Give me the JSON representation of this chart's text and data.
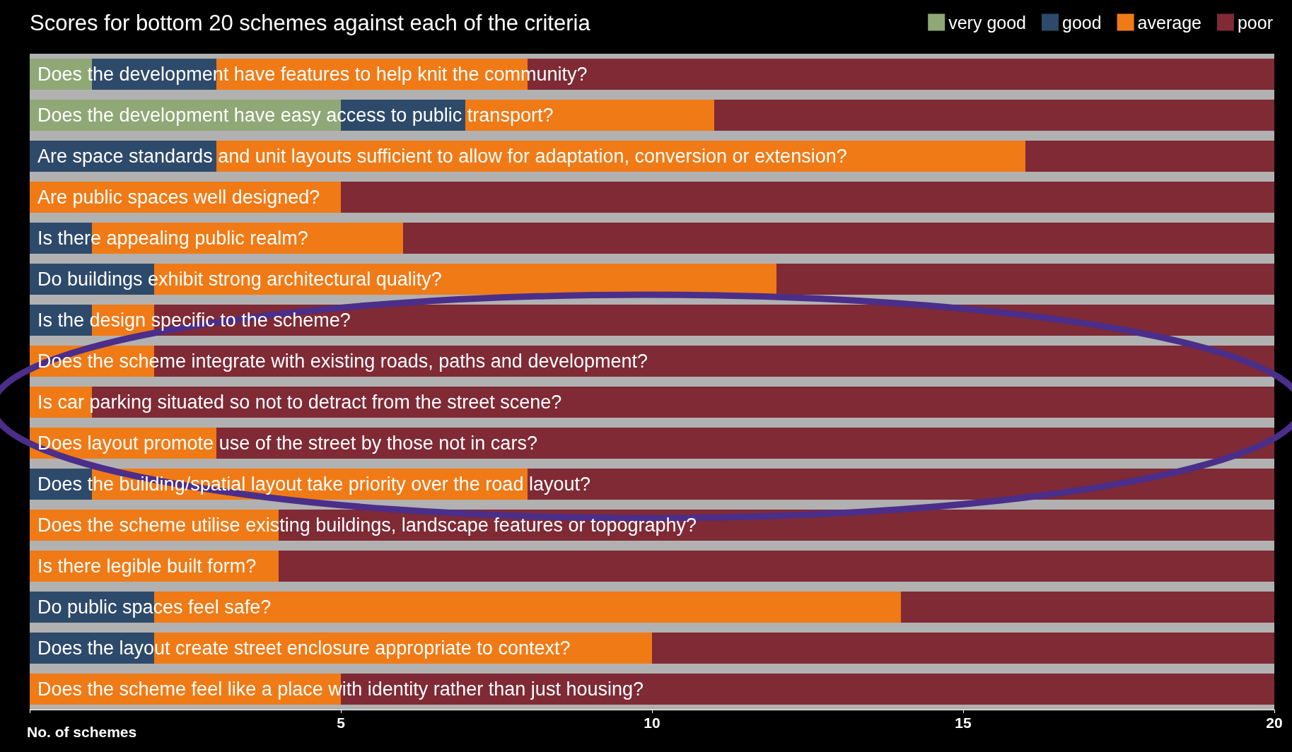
{
  "chart_data": {
    "type": "bar",
    "orientation": "horizontal",
    "stacked": true,
    "title": "Scores for bottom 20 schemes against each of the criteria",
    "xlabel": "No. of schemes",
    "categories": [
      "Does the development have features to help knit the community?",
      "Does the development have easy access to public transport?",
      "Are space standards and unit layouts sufficient to allow for adaptation, conversion or extension?",
      "Are public spaces well designed?",
      "Is there appealing public realm?",
      "Do buildings exhibit strong architectural quality?",
      "Is the design specific to the scheme?",
      "Does the scheme integrate with existing roads, paths and development?",
      "Is car parking situated so not to detract from the street scene?",
      "Does layout promote use of the street by those not in cars?",
      "Does the building/spatial layout take priority over the road layout?",
      "Does the scheme utilise existing buildings, landscape features or topography?",
      "Is there legible built form?",
      "Do public spaces feel safe?",
      "Does the layout create street enclosure appropriate to context?",
      "Does the scheme feel like a place with identity rather than just housing?"
    ],
    "series": [
      {
        "name": "very good",
        "color": "#8fa876",
        "values": [
          1,
          5,
          0,
          0,
          0,
          0,
          0,
          0,
          0,
          0,
          0,
          0,
          0,
          0,
          0,
          0
        ]
      },
      {
        "name": "good",
        "color": "#2e4a6b",
        "values": [
          2,
          2,
          3,
          0,
          1,
          2,
          1,
          0,
          0,
          0,
          1,
          0,
          0,
          2,
          2,
          0
        ]
      },
      {
        "name": "average",
        "color": "#f07a16",
        "values": [
          5,
          4,
          13,
          5,
          5,
          10,
          1,
          2,
          1,
          3,
          7,
          4,
          4,
          12,
          8,
          5
        ]
      },
      {
        "name": "poor",
        "color": "#7f2a35",
        "values": [
          12,
          9,
          4,
          15,
          14,
          8,
          18,
          18,
          19,
          17,
          12,
          16,
          16,
          6,
          10,
          15
        ]
      }
    ],
    "xlim": [
      0,
      20
    ],
    "xticks": [
      {
        "value": 0,
        "label": null
      },
      5,
      10,
      15,
      20
    ],
    "grid": false,
    "legend": "top right"
  }
}
